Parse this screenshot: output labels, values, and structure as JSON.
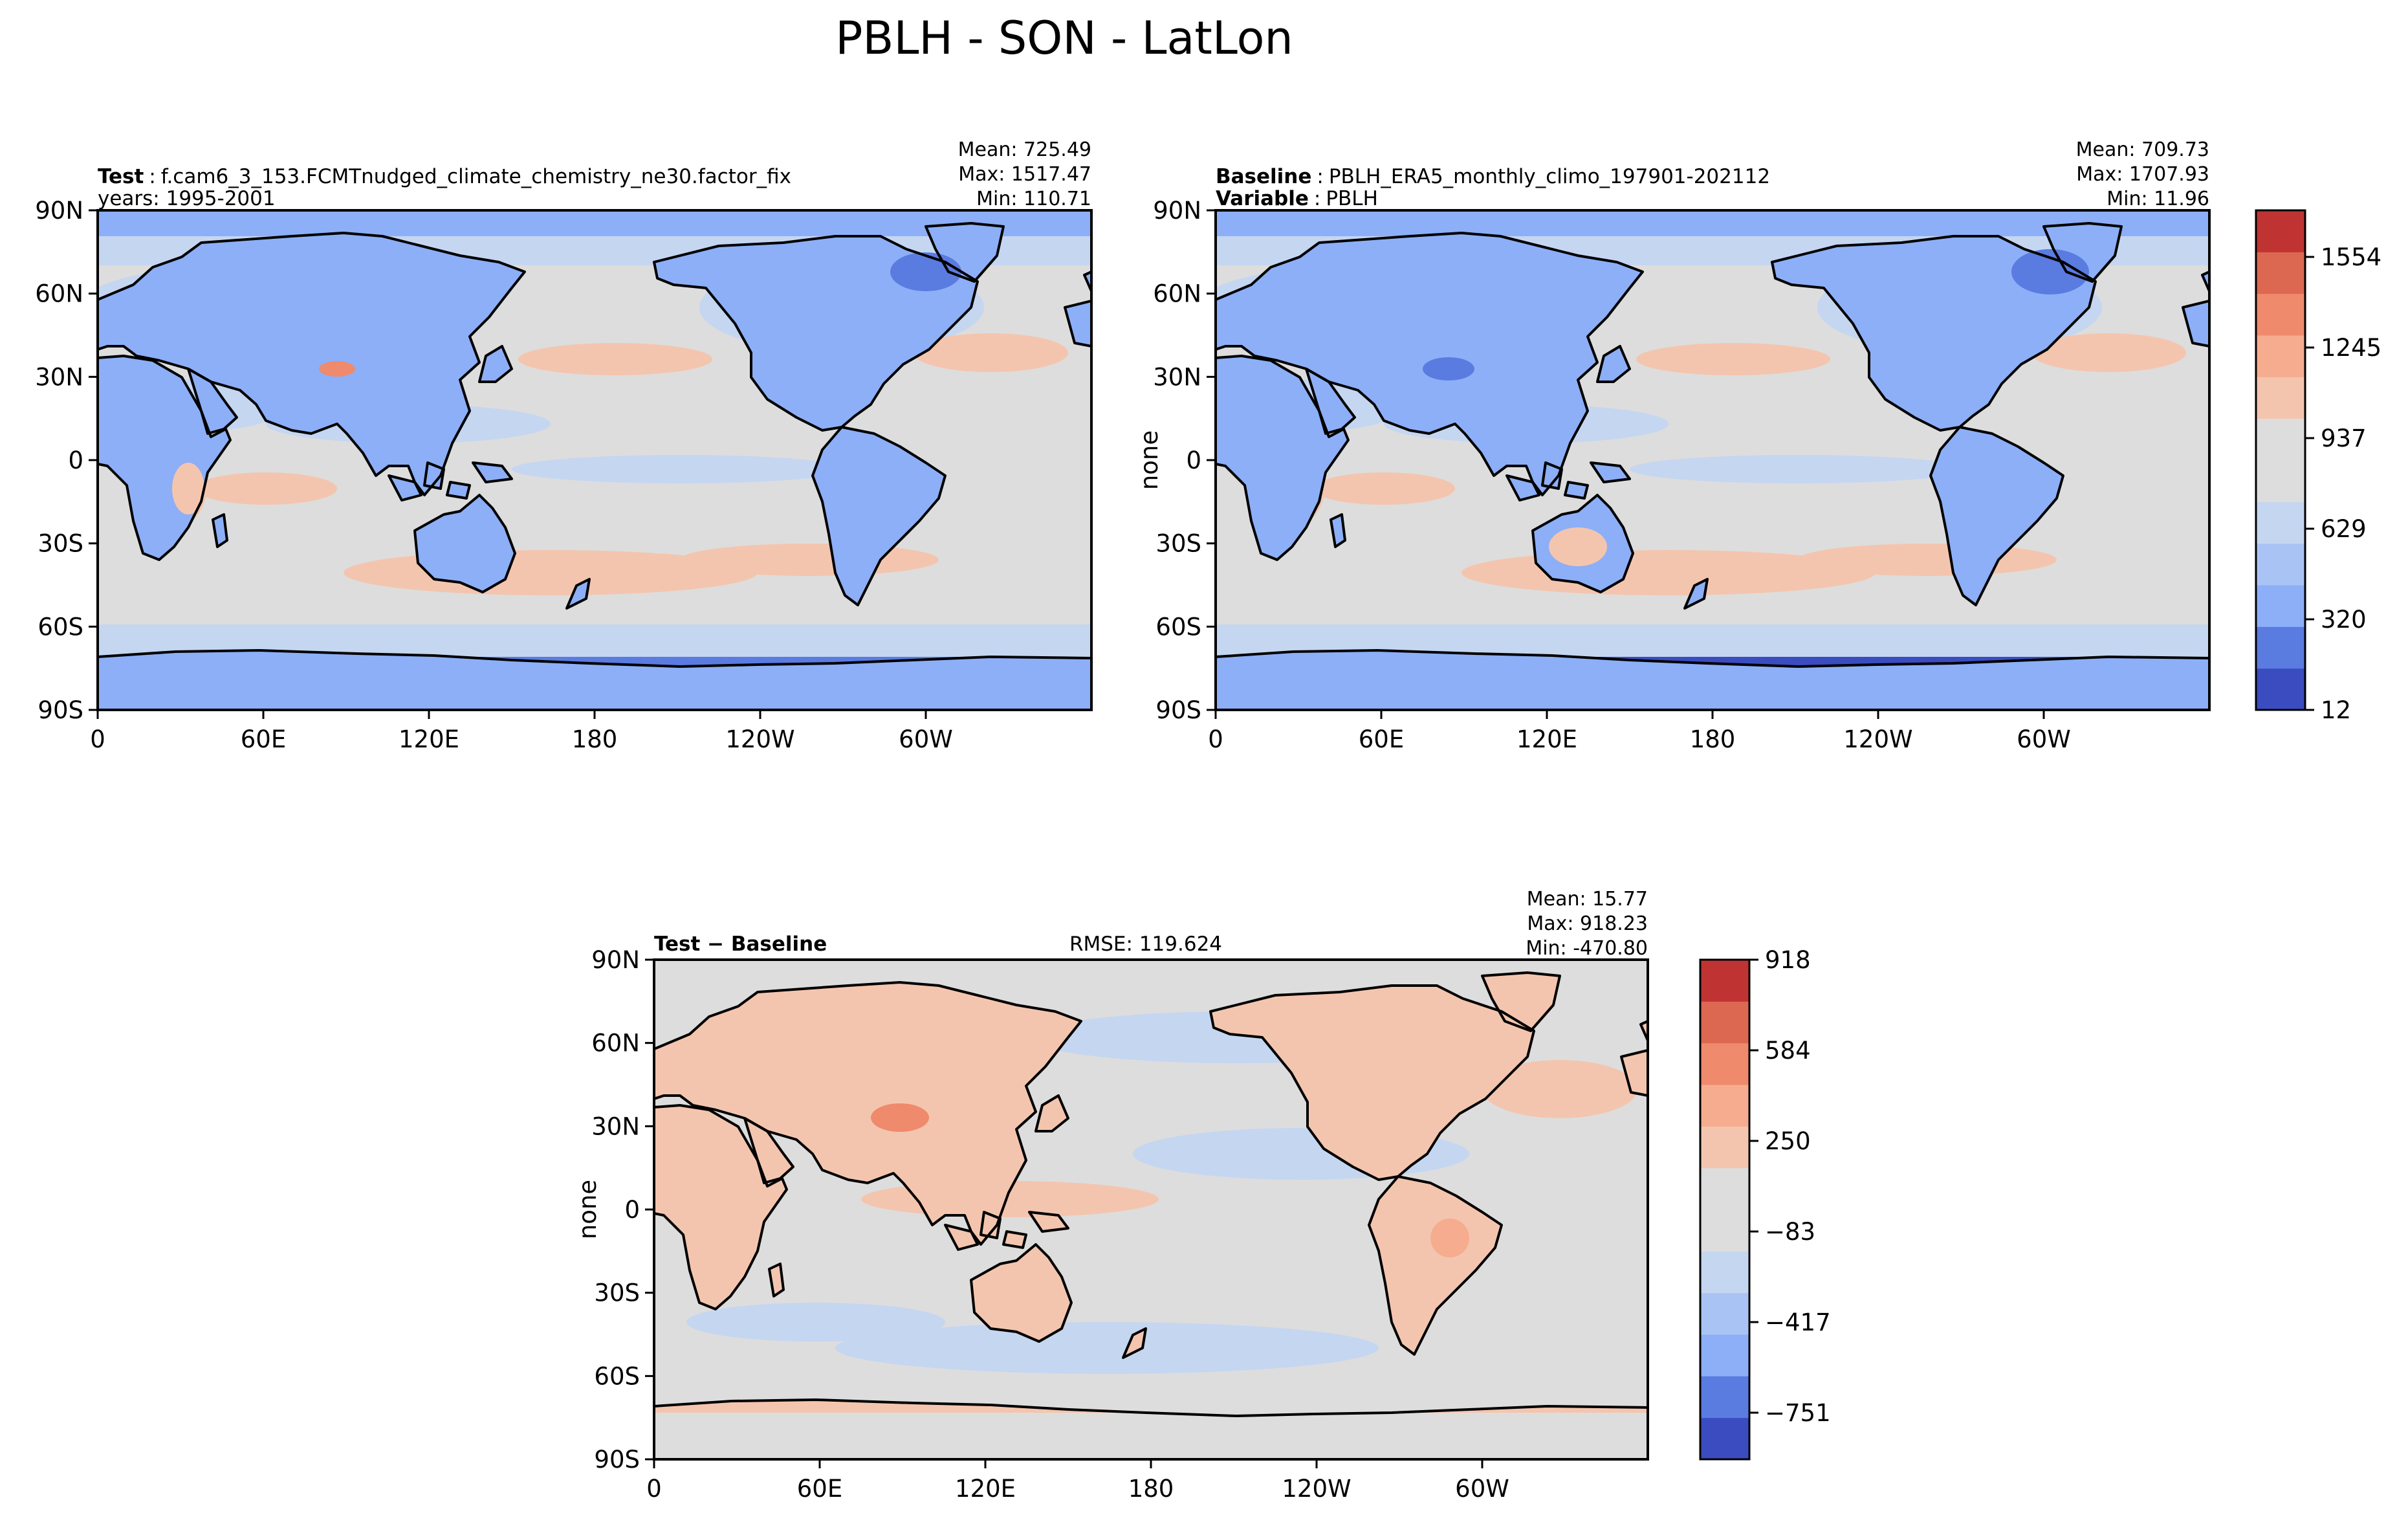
{
  "figure_title": "PBLH - SON - LatLon",
  "panels": [
    {
      "id": "test",
      "label_bold": "Test",
      "label_sep": ":",
      "label_value": "f.cam6_3_153.FCMTnudged_climate_chemistry_ne30.factor_fix",
      "line2_bold": "",
      "line2_text": "years: 1995-2001",
      "ylabel": "",
      "rmse": "",
      "stats": [
        "Mean: 725.49",
        "Max: 1517.47",
        "Min: 110.71"
      ]
    },
    {
      "id": "baseline",
      "label_bold": "Baseline",
      "label_sep": ":",
      "label_value": "PBLH_ERA5_monthly_climo_197901-202112",
      "line2_bold": "Variable",
      "line2_text": "PBLH",
      "ylabel": "none",
      "rmse": "",
      "stats": [
        "Mean: 709.73",
        "Max: 1707.93",
        "Min: 11.96"
      ]
    },
    {
      "id": "diff",
      "label_bold": "Test − Baseline",
      "label_sep": "",
      "label_value": "",
      "line2_bold": "",
      "line2_text": "",
      "ylabel": "none",
      "rmse": "RMSE: 119.624",
      "stats": [
        "Mean: 15.77",
        "Max: 918.23",
        "Min: -470.80"
      ]
    }
  ],
  "axes": {
    "lon_ticks": [
      "0",
      "60E",
      "120E",
      "180",
      "120W",
      "60W"
    ],
    "lat_ticks": [
      "90N",
      "60N",
      "30N",
      "0",
      "30S",
      "60S",
      "90S"
    ]
  },
  "colorbars": {
    "main": {
      "ticks": [
        "1554",
        "1245",
        "937",
        "629",
        "320",
        "12"
      ]
    },
    "diff": {
      "ticks": [
        "918",
        "584",
        "250",
        "−83",
        "−417",
        "−751"
      ]
    }
  },
  "colors": {
    "blue_5": "#3b4cc0",
    "blue_4": "#5a7be0",
    "blue_3": "#8caff7",
    "blue_2": "#a9c4f4",
    "blue_1": "#c5d6f1",
    "neutral": "#dddddd",
    "red_1": "#f4c5ae",
    "red_2": "#f6ac8f",
    "red_3": "#ef8a6c",
    "red_4": "#dd6852",
    "red_5": "#c03333"
  }
}
